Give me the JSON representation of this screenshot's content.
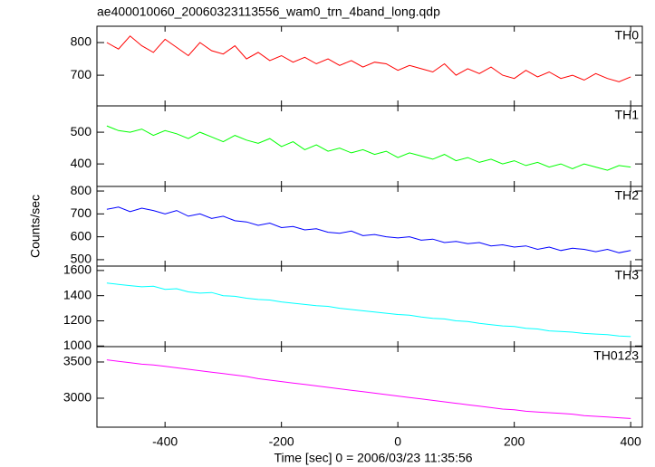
{
  "chart_data": [
    {
      "type": "line",
      "title": "ae400010060_20060323113556_wam0_trn_4band_long.qdp",
      "x": [
        -500,
        -480,
        -460,
        -440,
        -420,
        -400,
        -380,
        -360,
        -340,
        -320,
        -300,
        -280,
        -260,
        -240,
        -220,
        -200,
        -180,
        -160,
        -140,
        -120,
        -100,
        -80,
        -60,
        -40,
        -20,
        0,
        20,
        40,
        60,
        80,
        100,
        120,
        140,
        160,
        180,
        200,
        220,
        240,
        260,
        280,
        300,
        320,
        340,
        360,
        380,
        400
      ],
      "series": [
        {
          "name": "TH0",
          "color": "#ff0000",
          "values": [
            800,
            780,
            820,
            790,
            770,
            810,
            785,
            760,
            800,
            775,
            765,
            790,
            750,
            770,
            745,
            760,
            740,
            755,
            735,
            750,
            730,
            745,
            725,
            740,
            735,
            715,
            730,
            720,
            710,
            735,
            700,
            720,
            705,
            725,
            700,
            690,
            715,
            695,
            710,
            690,
            700,
            685,
            705,
            690,
            680,
            695
          ]
        }
      ],
      "xlim": [
        -517,
        420
      ],
      "ylim": [
        606,
        850
      ],
      "yticks": [
        700,
        800
      ]
    },
    {
      "type": "line",
      "x": [
        -500,
        -480,
        -460,
        -440,
        -420,
        -400,
        -380,
        -360,
        -340,
        -320,
        -300,
        -280,
        -260,
        -240,
        -220,
        -200,
        -180,
        -160,
        -140,
        -120,
        -100,
        -80,
        -60,
        -40,
        -20,
        0,
        20,
        40,
        60,
        80,
        100,
        120,
        140,
        160,
        180,
        200,
        220,
        240,
        260,
        280,
        300,
        320,
        340,
        360,
        380,
        400
      ],
      "series": [
        {
          "name": "TH1",
          "color": "#00ff00",
          "values": [
            520,
            505,
            500,
            510,
            490,
            505,
            495,
            480,
            500,
            485,
            470,
            490,
            475,
            465,
            480,
            455,
            470,
            445,
            460,
            440,
            450,
            435,
            445,
            430,
            440,
            420,
            435,
            425,
            415,
            430,
            410,
            420,
            405,
            415,
            400,
            410,
            395,
            405,
            390,
            400,
            385,
            400,
            390,
            380,
            395,
            390
          ]
        }
      ],
      "xlim": [
        -517,
        420
      ],
      "ylim": [
        329,
        583
      ],
      "yticks": [
        400,
        500
      ]
    },
    {
      "type": "line",
      "ylabel": "Counts/sec",
      "x": [
        -500,
        -480,
        -460,
        -440,
        -420,
        -400,
        -380,
        -360,
        -340,
        -320,
        -300,
        -280,
        -260,
        -240,
        -220,
        -200,
        -180,
        -160,
        -140,
        -120,
        -100,
        -80,
        -60,
        -40,
        -20,
        0,
        20,
        40,
        60,
        80,
        100,
        120,
        140,
        160,
        180,
        200,
        220,
        240,
        260,
        280,
        300,
        320,
        340,
        360,
        380,
        400
      ],
      "series": [
        {
          "name": "TH2",
          "color": "#0000ff",
          "values": [
            720,
            730,
            710,
            725,
            715,
            700,
            715,
            690,
            700,
            680,
            690,
            670,
            665,
            650,
            660,
            640,
            645,
            630,
            635,
            620,
            615,
            625,
            605,
            610,
            600,
            595,
            600,
            585,
            590,
            575,
            580,
            570,
            575,
            560,
            565,
            555,
            560,
            545,
            555,
            540,
            550,
            545,
            535,
            545,
            530,
            540
          ]
        }
      ],
      "xlim": [
        -517,
        420
      ],
      "ylim": [
        472,
        820
      ],
      "yticks": [
        500,
        600,
        700,
        800
      ]
    },
    {
      "type": "line",
      "x": [
        -500,
        -480,
        -460,
        -440,
        -420,
        -400,
        -380,
        -360,
        -340,
        -320,
        -300,
        -280,
        -260,
        -240,
        -220,
        -200,
        -180,
        -160,
        -140,
        -120,
        -100,
        -80,
        -60,
        -40,
        -20,
        0,
        20,
        40,
        60,
        80,
        100,
        120,
        140,
        160,
        180,
        200,
        220,
        240,
        260,
        280,
        300,
        320,
        340,
        360,
        380,
        400
      ],
      "series": [
        {
          "name": "TH3",
          "color": "#00ffff",
          "values": [
            1500,
            1490,
            1480,
            1470,
            1475,
            1450,
            1455,
            1430,
            1420,
            1425,
            1400,
            1395,
            1380,
            1370,
            1365,
            1350,
            1340,
            1330,
            1320,
            1315,
            1300,
            1290,
            1280,
            1270,
            1260,
            1250,
            1245,
            1230,
            1220,
            1215,
            1200,
            1195,
            1180,
            1170,
            1160,
            1155,
            1140,
            1135,
            1120,
            1115,
            1110,
            1100,
            1095,
            1090,
            1080,
            1075
          ]
        }
      ],
      "xlim": [
        -517,
        420
      ],
      "ylim": [
        995,
        1635
      ],
      "yticks": [
        1000,
        1200,
        1400,
        1600
      ]
    },
    {
      "type": "line",
      "xlabel": "Time [sec] 0 = 2006/03/23 11:35:56",
      "x": [
        -500,
        -480,
        -460,
        -440,
        -420,
        -400,
        -380,
        -360,
        -340,
        -320,
        -300,
        -280,
        -260,
        -240,
        -220,
        -200,
        -180,
        -160,
        -140,
        -120,
        -100,
        -80,
        -60,
        -40,
        -20,
        0,
        20,
        40,
        60,
        80,
        100,
        120,
        140,
        160,
        180,
        200,
        220,
        240,
        260,
        280,
        300,
        320,
        340,
        360,
        380,
        400
      ],
      "series": [
        {
          "name": "TH0123",
          "color": "#ff00ff",
          "values": [
            3530,
            3510,
            3490,
            3470,
            3460,
            3440,
            3420,
            3400,
            3380,
            3360,
            3340,
            3320,
            3300,
            3270,
            3250,
            3230,
            3210,
            3190,
            3170,
            3150,
            3130,
            3110,
            3090,
            3070,
            3050,
            3030,
            3010,
            2990,
            2970,
            2950,
            2930,
            2910,
            2890,
            2870,
            2850,
            2840,
            2820,
            2810,
            2800,
            2790,
            2780,
            2760,
            2750,
            2740,
            2730,
            2720
          ]
        }
      ],
      "xlim": [
        -517,
        420
      ],
      "ylim": [
        2600,
        3712
      ],
      "yticks": [
        3000,
        3500
      ],
      "xticks": [
        -400,
        -200,
        0,
        200,
        400
      ]
    }
  ]
}
